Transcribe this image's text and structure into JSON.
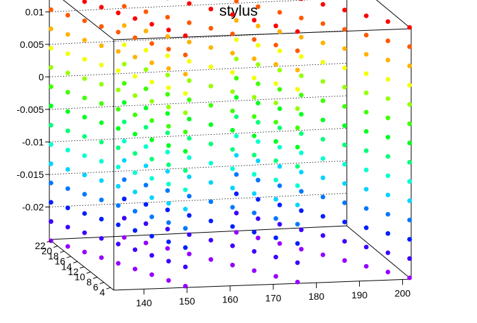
{
  "chart_data": {
    "type": "scatter",
    "title": "stylus",
    "xlabel": "",
    "ylabel": "",
    "zlabel": "",
    "x_range": [
      133,
      202
    ],
    "y_range": [
      3,
      22.5
    ],
    "z_range": [
      -0.025,
      0.0135
    ],
    "x_ticks": [
      "140",
      "150",
      "160",
      "170",
      "180",
      "190",
      "200"
    ],
    "y_ticks": [
      "22",
      "20",
      "18",
      "16",
      "14",
      "12",
      "10",
      "8",
      "6",
      "4"
    ],
    "z_ticks": [
      "0.01",
      "0.005",
      "0",
      "-0.005",
      "-0.01",
      "-0.015",
      "-0.02"
    ],
    "grid": true,
    "color_scale": "rainbow (color mapped to z value: red = high, violet = low)",
    "series": [
      {
        "blocks": [
          {
            "x": [
              133,
              150
            ],
            "y": [
              22,
              3.5
            ],
            "z_top": 0.0135,
            "z_bottom": -0.025
          },
          {
            "x": [
              150,
              176
            ],
            "y": [
              22,
              3.5
            ],
            "z_top": 0.0135,
            "z_bottom": -0.025
          },
          {
            "x": [
              176,
              202
            ],
            "y": [
              22,
              3.5
            ],
            "z_top": 0.0135,
            "z_bottom": -0.025
          }
        ],
        "levels_per_block": 14
      }
    ]
  }
}
